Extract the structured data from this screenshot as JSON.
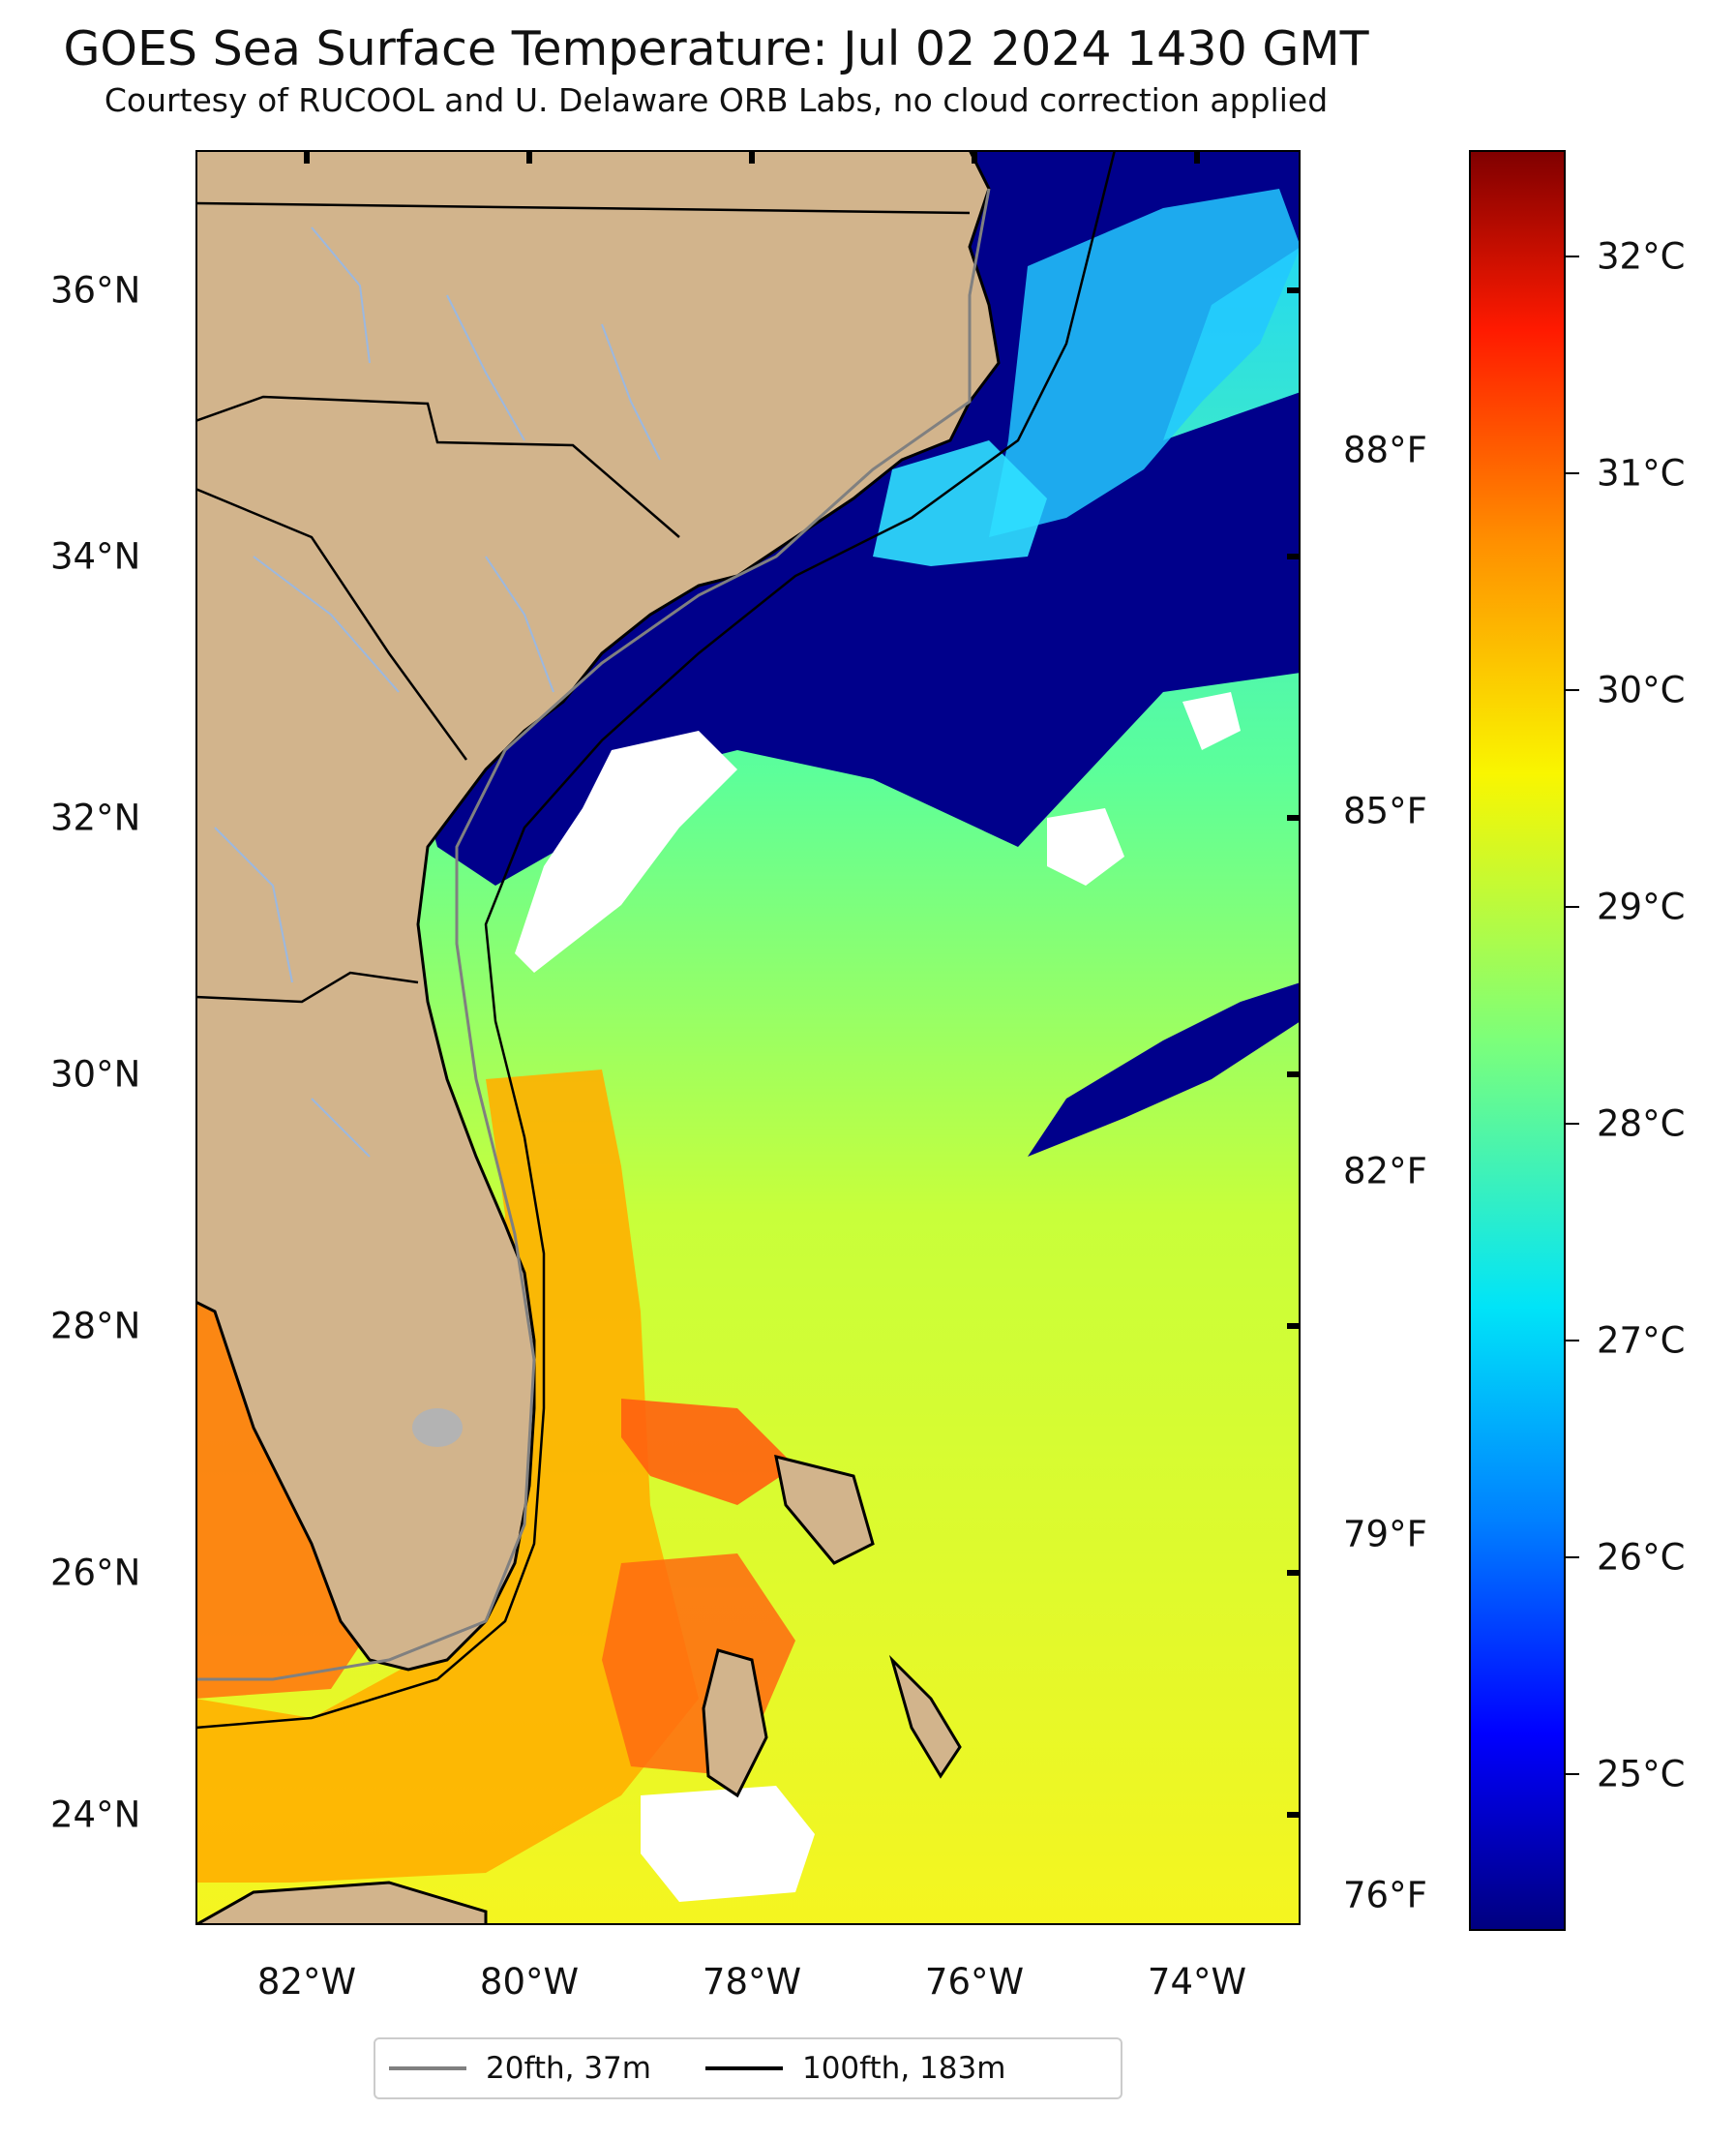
{
  "title": "GOES Sea Surface Temperature: Jul 02 2024 1430 GMT",
  "subtitle": "Courtesy of RUCOOL and U. Delaware ORB Labs, no cloud correction applied",
  "lat_labels": [
    "36°N",
    "34°N",
    "32°N",
    "30°N",
    "28°N",
    "26°N",
    "24°N"
  ],
  "lon_labels": [
    "82°W",
    "80°W",
    "78°W",
    "76°W",
    "74°W"
  ],
  "fahrenheit_labels": [
    "88°F",
    "85°F",
    "82°F",
    "79°F",
    "76°F"
  ],
  "colorbar": {
    "labels": [
      "32°C",
      "31°C",
      "30°C",
      "29°C",
      "28°C",
      "27°C",
      "26°C",
      "25°C"
    ],
    "colormap": "jet",
    "colors": {
      "low": "#000080",
      "mid": "#7cff7a",
      "high": "#800000"
    }
  },
  "legend": {
    "items": [
      {
        "label": "20fth, 37m",
        "color": "#808080"
      },
      {
        "label": "100fth, 183m",
        "color": "#000000"
      }
    ]
  },
  "colors": {
    "land": "#d2b48c",
    "cold_water": "#00008b",
    "no_data": "#ffffff",
    "rivers": "#9bb8e0"
  }
}
